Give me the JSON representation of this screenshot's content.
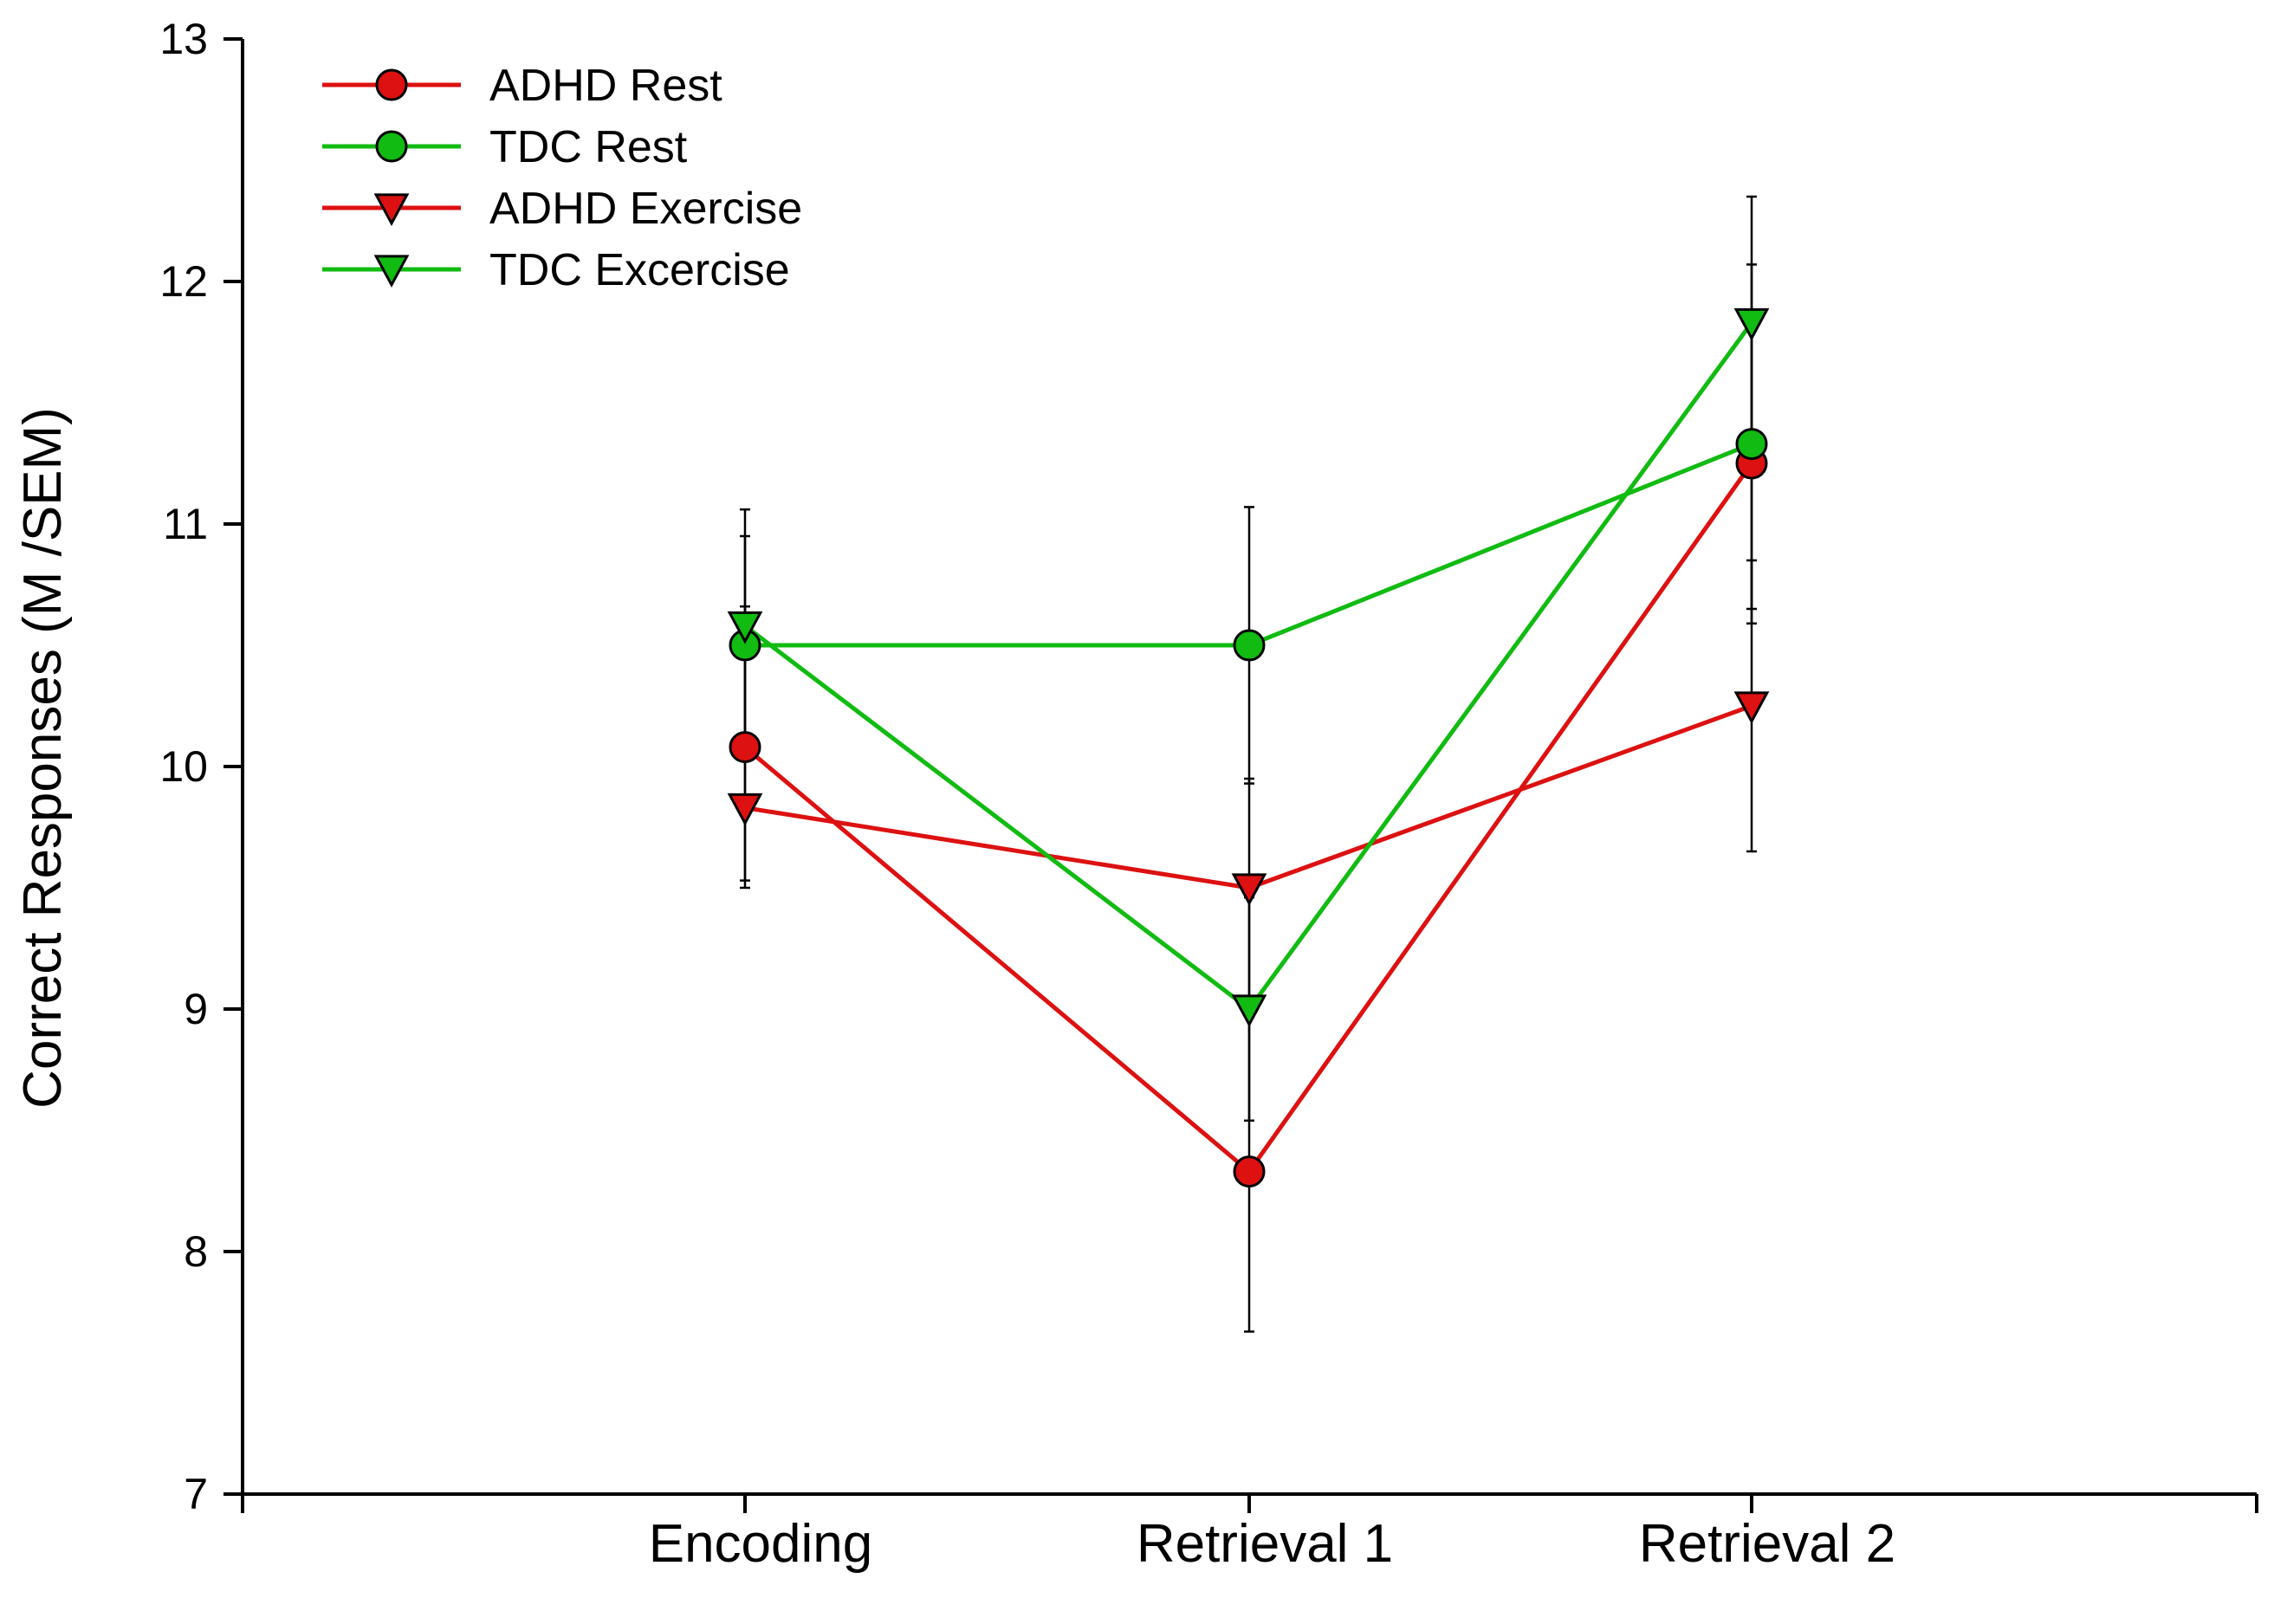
{
  "chart_data": {
    "type": "line",
    "title": "",
    "xlabel": "",
    "ylabel": "Correct Responses (M /SEM)",
    "ylim": [
      7,
      13
    ],
    "yticks": [
      7,
      8,
      9,
      10,
      11,
      12,
      13
    ],
    "categories": [
      "Encoding",
      "Retrieval 1",
      "Retrieval 2"
    ],
    "legend_position": "top-left",
    "grid": false,
    "series": [
      {
        "name": "ADHD Rest",
        "color": "#dd1111",
        "marker": "circle",
        "values": [
          10.08,
          8.33,
          11.25
        ],
        "sem": [
          0.58,
          0.66,
          0.6
        ]
      },
      {
        "name": "TDC Rest",
        "color": "#11bb11",
        "marker": "circle",
        "values": [
          10.5,
          10.5,
          11.33
        ],
        "sem": [
          0.45,
          0.57,
          0.74
        ]
      },
      {
        "name": "ADHD Exercise",
        "color": "#dd1111",
        "marker": "triangle-down",
        "values": [
          9.83,
          9.5,
          10.25
        ],
        "sem": [
          0.3,
          0.45,
          0.6
        ]
      },
      {
        "name": "TDC Excercise",
        "color": "#11bb11",
        "marker": "triangle-down",
        "values": [
          10.58,
          9.0,
          11.83
        ],
        "sem": [
          0.48,
          0.46,
          0.52
        ]
      }
    ]
  }
}
